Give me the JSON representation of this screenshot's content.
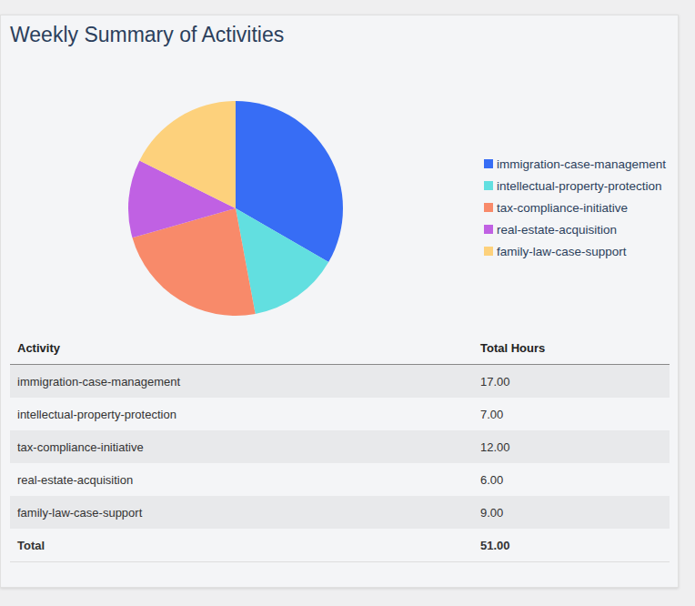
{
  "chart_data": {
    "type": "pie",
    "title": "Weekly Summary of Activities",
    "categories": [
      "immigration-case-management",
      "intellectual-property-protection",
      "tax-compliance-initiative",
      "real-estate-acquisition",
      "family-law-case-support"
    ],
    "values": [
      17,
      7,
      12,
      6,
      9
    ],
    "colors": [
      "#376df5",
      "#62dfe0",
      "#f88a6a",
      "#c061e3",
      "#fdd17c"
    ],
    "legend": "right"
  },
  "table": {
    "header": [
      "Activity",
      "Total Hours"
    ],
    "rows": [
      [
        "immigration-case-management",
        "17.00"
      ],
      [
        "intellectual-property-protection",
        "7.00"
      ],
      [
        "tax-compliance-initiative",
        "12.00"
      ],
      [
        "real-estate-acquisition",
        "6.00"
      ],
      [
        "family-law-case-support",
        "9.00"
      ]
    ],
    "footer": [
      "Total",
      "51.00"
    ]
  }
}
